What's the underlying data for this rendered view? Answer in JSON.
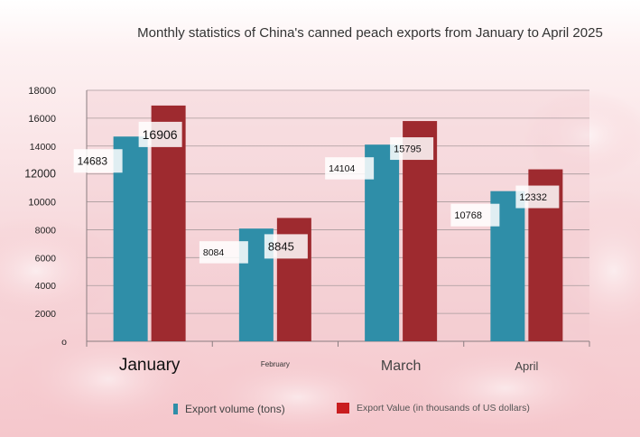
{
  "chart_data": {
    "type": "bar",
    "title": "Monthly statistics of China's canned peach exports from January to April 2025",
    "categories": [
      "January",
      "February",
      "March",
      "April"
    ],
    "series": [
      {
        "name": "Export volume (tons)",
        "color": "#2f8ea8",
        "values": [
          14683,
          8084,
          14104,
          10768
        ]
      },
      {
        "name": "Export Value (in thousands of US dollars)",
        "color": "#9e2a2f",
        "values": [
          16906,
          8845,
          15795,
          12332
        ]
      }
    ],
    "y_ticks": [
      "o",
      "2000",
      "4000",
      "6000",
      "8000",
      "10000",
      "12000",
      "14000",
      "16000",
      "18000"
    ],
    "ylim": [
      0,
      18000
    ],
    "xlabel": "",
    "ylabel": "",
    "grid": true,
    "legend": "bottom"
  }
}
